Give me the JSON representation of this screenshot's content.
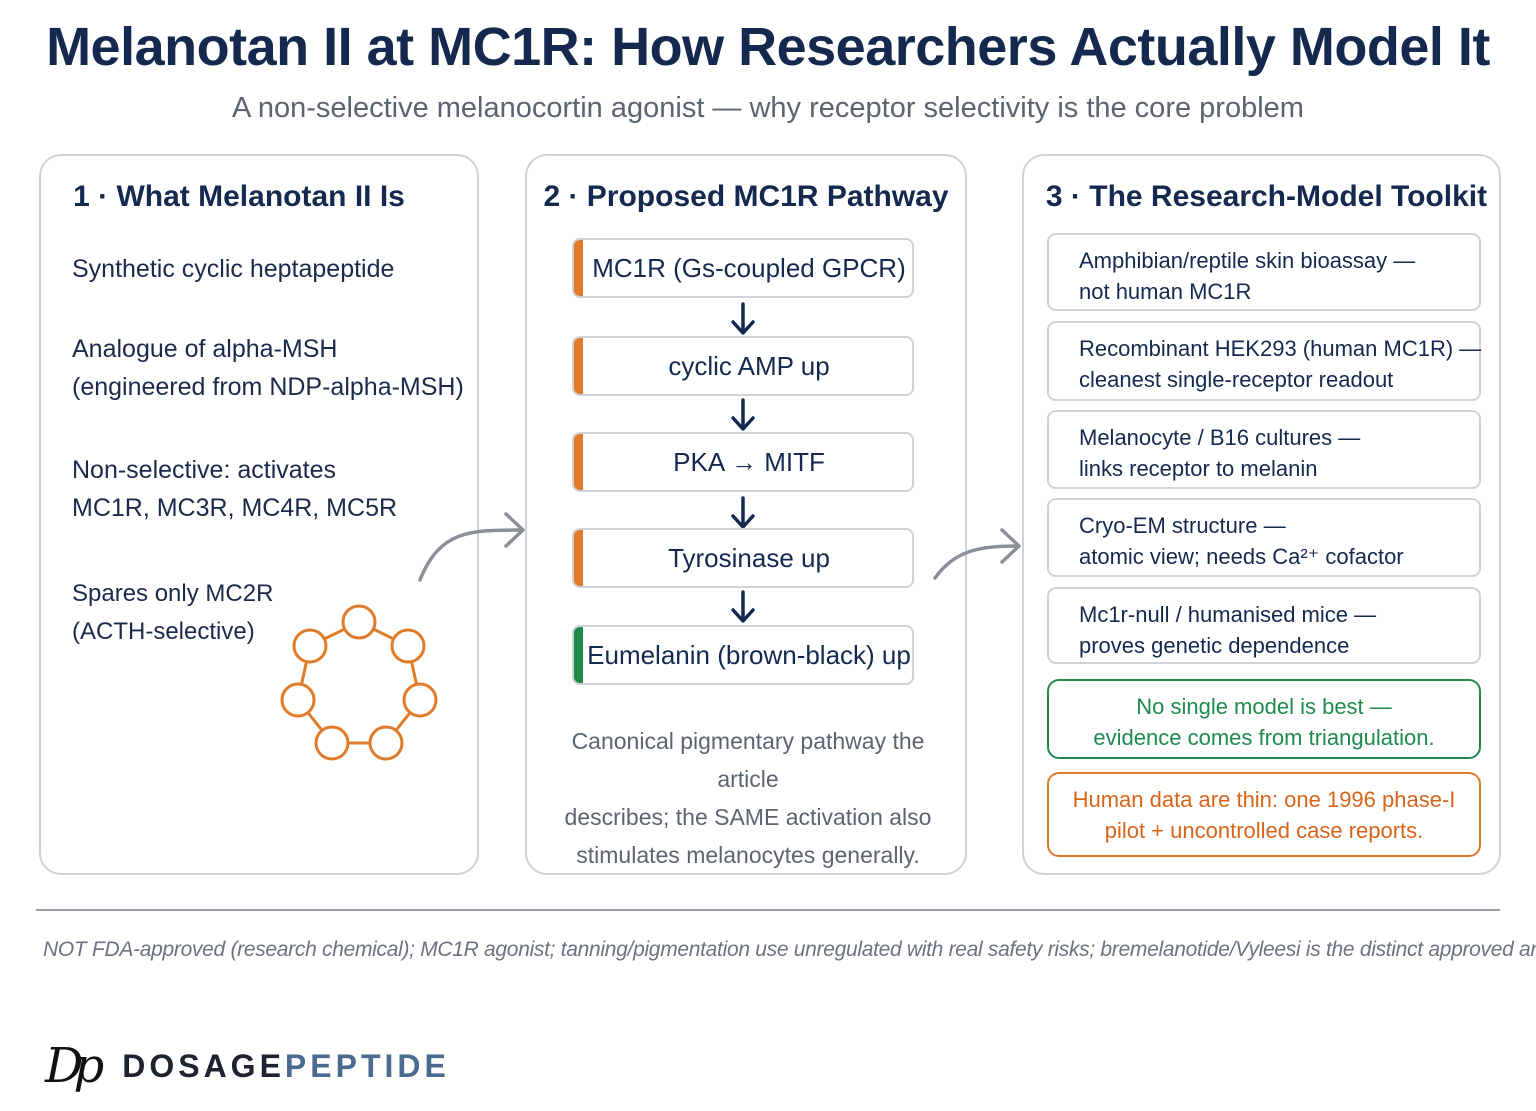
{
  "header": {
    "title": "Melanotan II at MC1R: How Researchers Actually Model It",
    "subtitle": "A non-selective melanocortin agonist — why receptor selectivity is the core problem"
  },
  "panel1": {
    "title": "1 · What Melanotan II Is",
    "items": [
      {
        "lines": [
          "Synthetic cyclic heptapeptide"
        ]
      },
      {
        "lines": [
          "Analogue of alpha-MSH",
          "(engineered from NDP-alpha-MSH)"
        ]
      },
      {
        "lines": [
          "Non-selective: activates",
          "MC1R, MC3R, MC4R, MC5R"
        ]
      },
      {
        "lines": [
          "Spares only MC2R",
          "(ACTH-selective)"
        ]
      }
    ]
  },
  "panel2": {
    "title": "2 · Proposed MC1R Pathway",
    "steps": [
      {
        "label": "MC1R (Gs-coupled GPCR)",
        "color": "#e07b2a"
      },
      {
        "label": "cyclic AMP up",
        "color": "#e07b2a"
      },
      {
        "label": "PKA → MITF",
        "color": "#e07b2a"
      },
      {
        "label": "Tyrosinase up",
        "color": "#e07b2a"
      },
      {
        "label": "Eumelanin (brown-black) up",
        "color": "#1e8a4c"
      }
    ],
    "caption": [
      "Canonical pigmentary pathway the article",
      "describes; the SAME activation also",
      "stimulates melanocytes generally."
    ]
  },
  "panel3": {
    "title": "3 · The Research-Model Toolkit",
    "models": [
      {
        "lines": [
          "Amphibian/reptile skin bioassay —",
          "not human MC1R"
        ]
      },
      {
        "lines": [
          "Recombinant HEK293 (human MC1R) —",
          "cleanest single-receptor readout"
        ]
      },
      {
        "lines": [
          "Melanocyte / B16 cultures —",
          "links receptor to melanin"
        ]
      },
      {
        "lines": [
          "Cryo-EM structure —",
          "atomic view; needs Ca²⁺ cofactor"
        ]
      },
      {
        "lines": [
          "Mc1r-null / humanised mice —",
          "proves genetic dependence"
        ]
      }
    ],
    "note_green": [
      "No single model is best —",
      "evidence comes from triangulation."
    ],
    "note_orange": [
      "Human data are thin: one 1996 phase-I",
      "pilot + uncontrolled case reports."
    ]
  },
  "footer": {
    "disclaimer": "NOT FDA-approved (research chemical); MC1R agonist; tanning/pigmentation use unregulated with real safety risks; bremelanotide/Vyleesi is the distinct approved analog.",
    "brand_mark": "Dp",
    "brand_part1": "DOSAGE",
    "brand_part2": "PEPTIDE"
  },
  "colors": {
    "title": "#15294f",
    "accent_orange": "#e07b2a",
    "accent_green": "#1e8a4c",
    "border": "#cfd3d8"
  },
  "icons": [
    "heptagon-ring-icon",
    "curved-arrow-icon",
    "down-arrow-icon"
  ]
}
